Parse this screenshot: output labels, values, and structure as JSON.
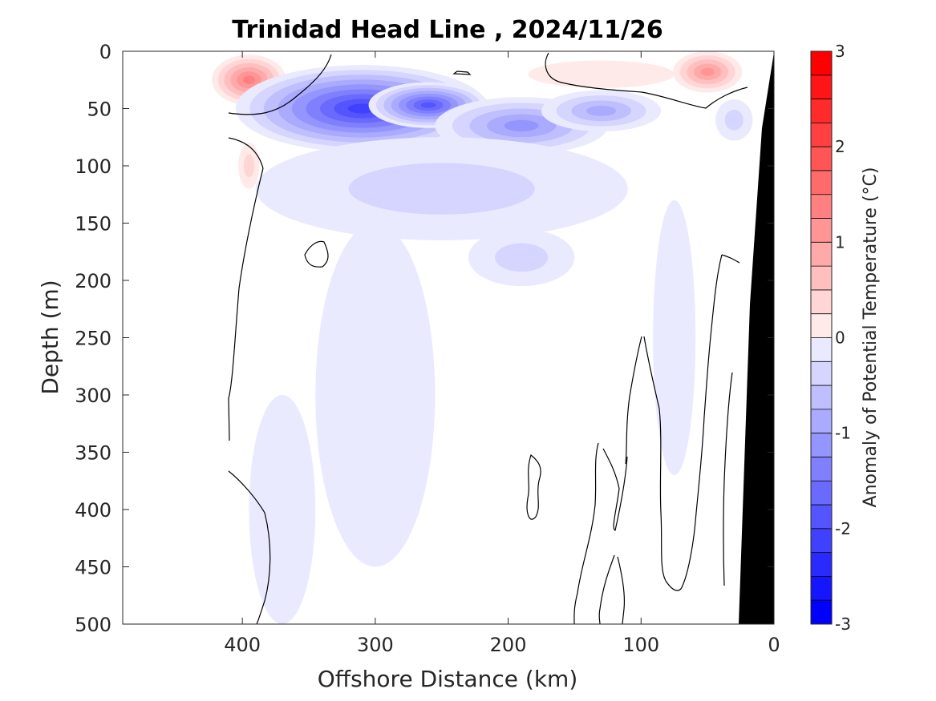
{
  "chart_data": {
    "type": "heatmap",
    "title": "Trinidad Head Line , 2024/11/26",
    "xlabel": "Offshore Distance (km)",
    "ylabel": "Depth (m)",
    "xlim": [
      490,
      0
    ],
    "ylim": [
      500,
      0
    ],
    "x_ticks": [
      "400",
      "300",
      "200",
      "100",
      "0"
    ],
    "y_ticks": [
      "0",
      "50",
      "100",
      "150",
      "200",
      "250",
      "300",
      "350",
      "400",
      "450",
      "500"
    ],
    "colorbar": {
      "label": "Anomaly of Potential Temperature (°C)",
      "ticks": [
        "3",
        "2",
        "1",
        "0",
        "-1",
        "-2",
        "-3"
      ],
      "range": [
        -3,
        3
      ],
      "levels": 24
    },
    "section_x_range_km": [
      410,
      0
    ],
    "data_points": [
      {
        "x": 395,
        "y": 25,
        "value": 1.4
      },
      {
        "x": 50,
        "y": 18,
        "value": 1.3
      },
      {
        "x": 130,
        "y": 20,
        "value": 0.3
      },
      {
        "x": 395,
        "y": 100,
        "value": 0.4
      },
      {
        "x": 310,
        "y": 50,
        "value": -2.2
      },
      {
        "x": 260,
        "y": 47,
        "value": -1.9
      },
      {
        "x": 190,
        "y": 65,
        "value": -1.3
      },
      {
        "x": 130,
        "y": 52,
        "value": -1.0
      },
      {
        "x": 30,
        "y": 60,
        "value": -0.5
      },
      {
        "x": 250,
        "y": 120,
        "value": -0.4
      },
      {
        "x": 190,
        "y": 180,
        "value": -0.6
      },
      {
        "x": 300,
        "y": 300,
        "value": -0.3
      },
      {
        "x": 370,
        "y": 400,
        "value": -0.3
      },
      {
        "x": 75,
        "y": 250,
        "value": -0.3
      }
    ]
  }
}
